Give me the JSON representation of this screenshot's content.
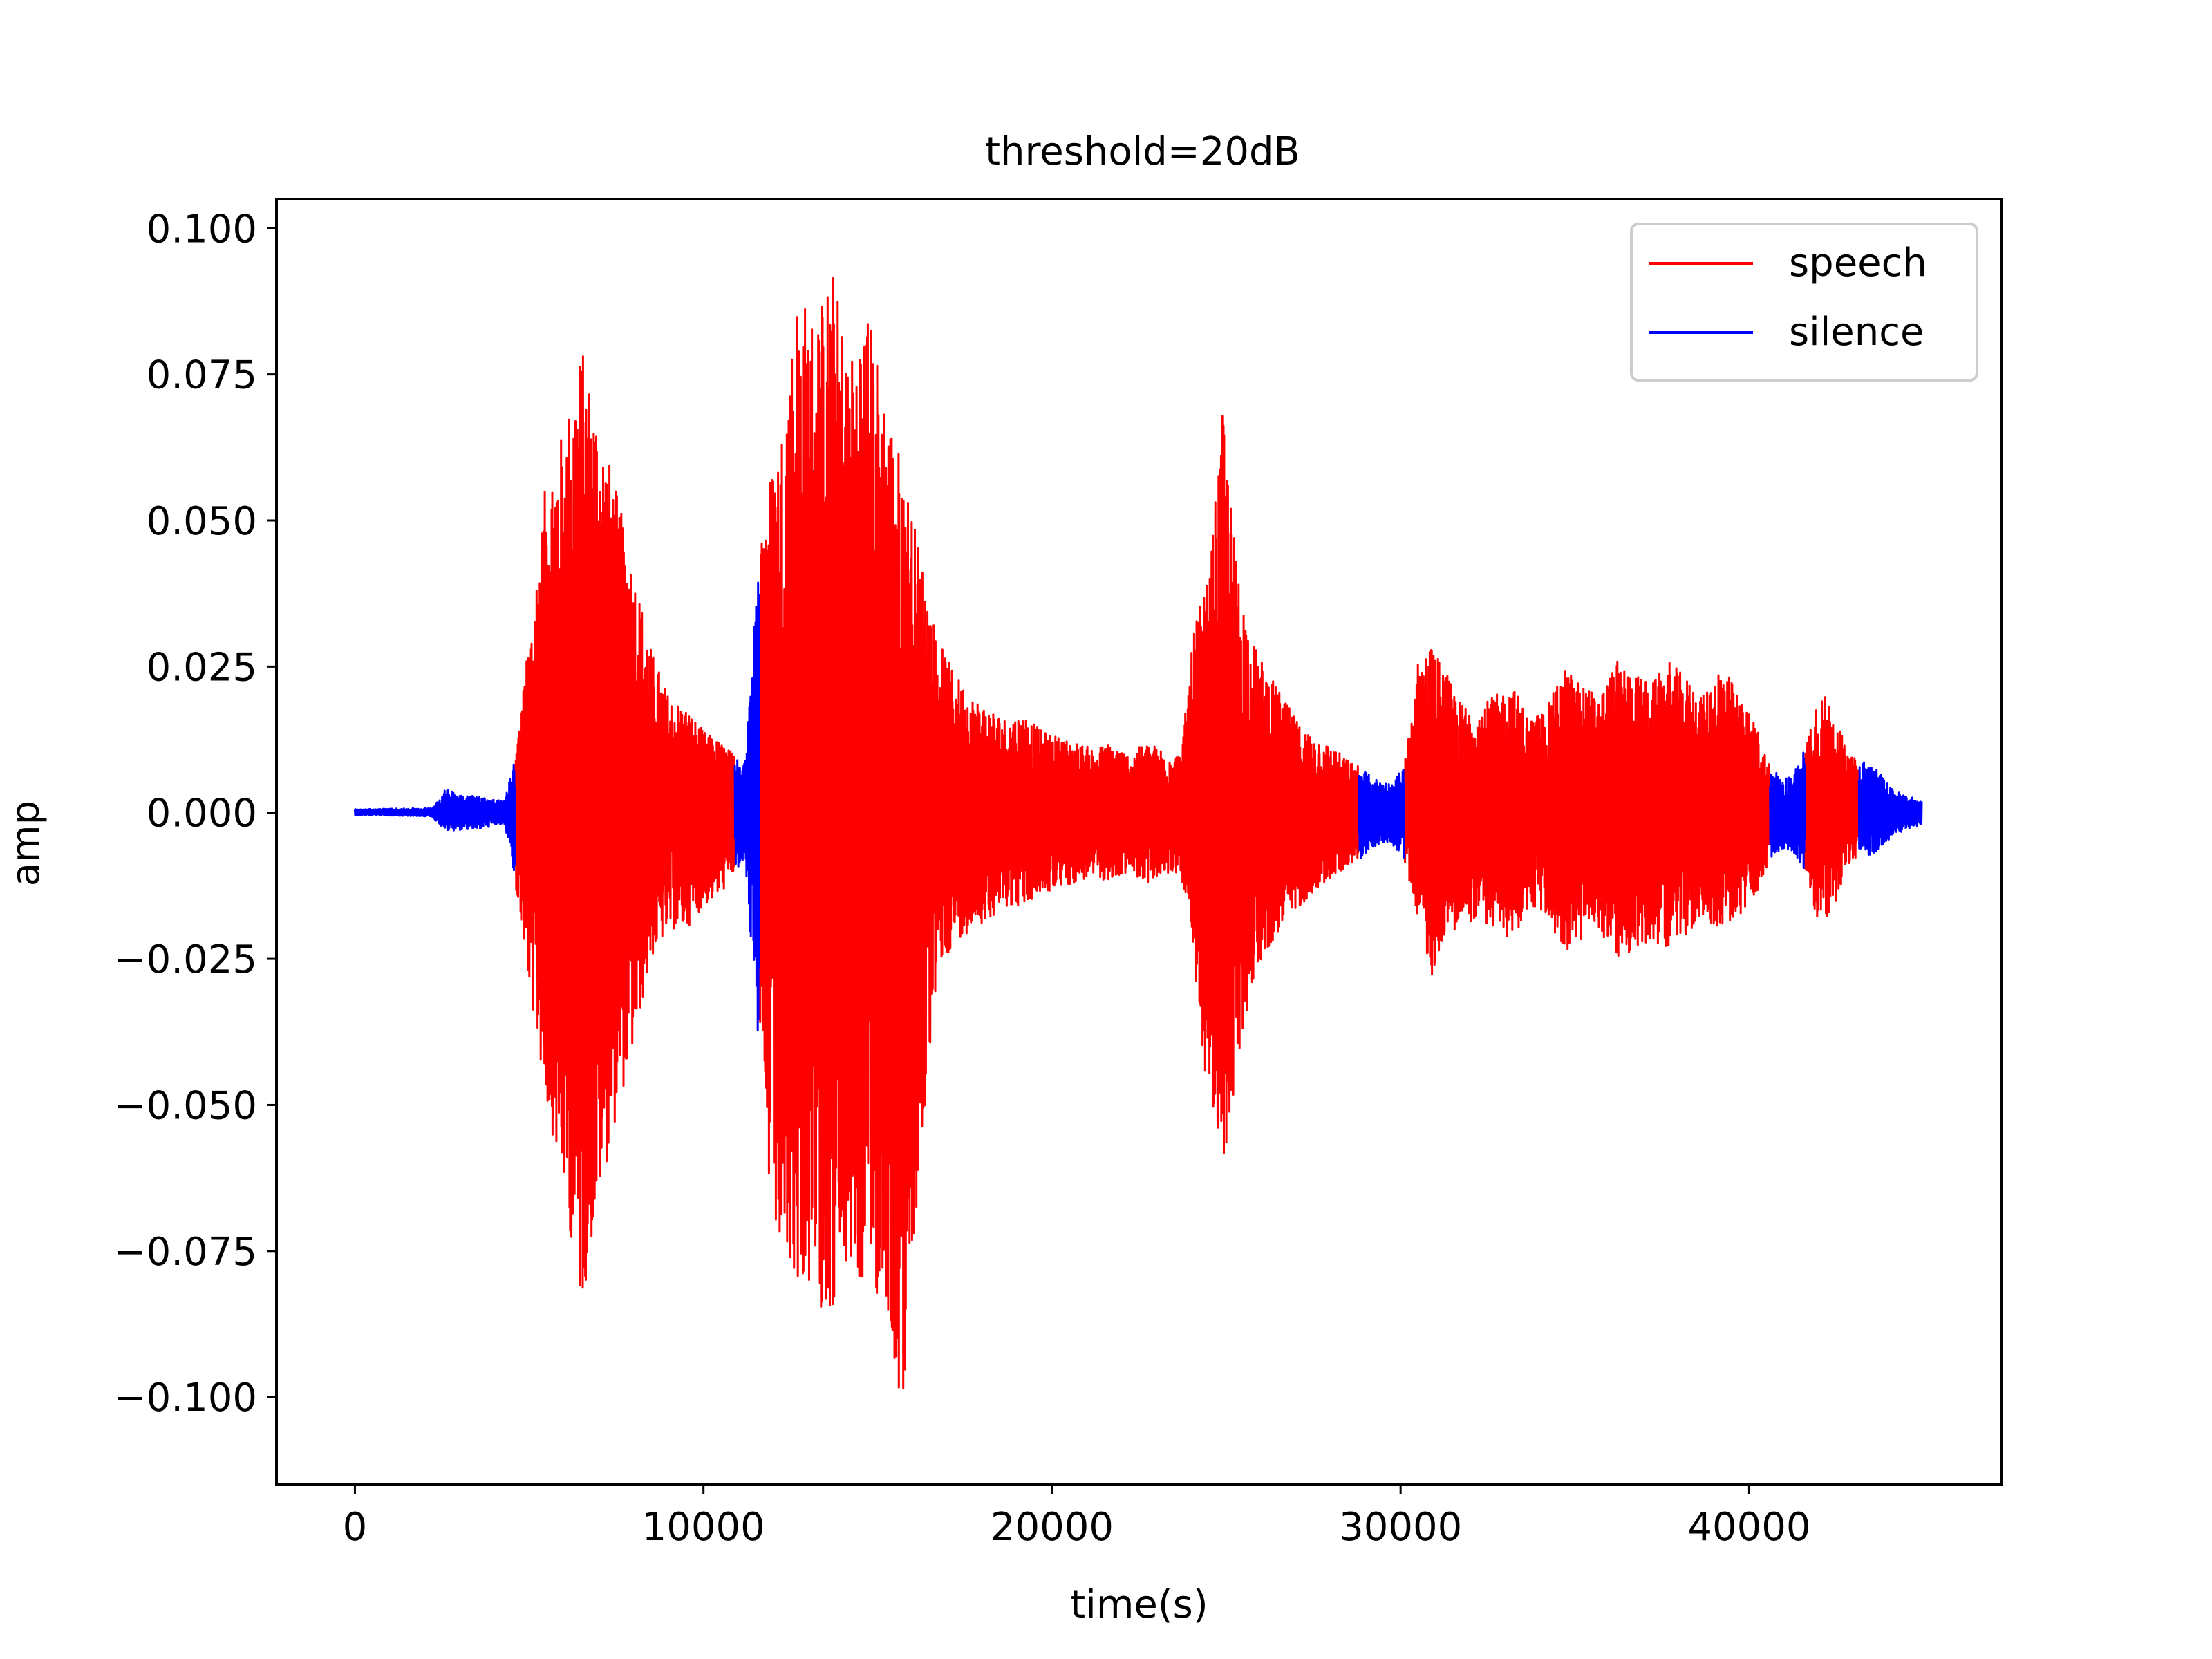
{
  "chart_data": {
    "type": "line",
    "title": "threshold=20dB",
    "xlabel": "time(s)",
    "ylabel": "amp",
    "xlim": [
      -2250,
      47250
    ],
    "ylim": [
      -0.115,
      0.105
    ],
    "xticks": [
      0,
      10000,
      20000,
      30000,
      40000
    ],
    "xtick_labels": [
      "0",
      "10000",
      "20000",
      "30000",
      "40000"
    ],
    "yticks": [
      0.1,
      0.075,
      0.05,
      0.025,
      0.0,
      -0.025,
      -0.05,
      -0.075,
      -0.1
    ],
    "ytick_labels": [
      "0.100",
      "0.075",
      "0.050",
      "0.025",
      "0.000",
      "−0.025",
      "−0.050",
      "−0.075",
      "−0.100"
    ],
    "grid": false,
    "legend_position": "top-right",
    "series": [
      {
        "name": "speech",
        "color": "#ff0000",
        "segments": [
          [
            4600,
            10900
          ],
          [
            11600,
            28800
          ],
          [
            30100,
            40600
          ],
          [
            41600,
            43150
          ]
        ]
      },
      {
        "name": "silence",
        "color": "#0000ff",
        "segments": [
          [
            0,
            4600
          ],
          [
            10900,
            11600
          ],
          [
            28800,
            30100
          ],
          [
            40600,
            41600
          ],
          [
            43150,
            44950
          ]
        ]
      }
    ],
    "amplitude_envelope": {
      "x": [
        0,
        2200,
        2600,
        3300,
        4300,
        4600,
        5000,
        5500,
        6000,
        6500,
        7000,
        7500,
        8000,
        8500,
        9000,
        9500,
        10000,
        10500,
        10900,
        11200,
        11600,
        11800,
        12200,
        12700,
        13200,
        13700,
        14200,
        14700,
        15200,
        15700,
        16200,
        16700,
        17200,
        17700,
        18200,
        18700,
        19200,
        19700,
        20200,
        20700,
        21200,
        21700,
        22200,
        22700,
        23200,
        23700,
        24100,
        24500,
        24900,
        25300,
        25700,
        26100,
        26600,
        27100,
        27600,
        28100,
        28500,
        28800,
        29200,
        29700,
        30100,
        30500,
        30900,
        31300,
        31700,
        32200,
        32700,
        33200,
        33700,
        34200,
        34700,
        35200,
        35700,
        36200,
        36700,
        37200,
        37700,
        38200,
        38700,
        39200,
        39700,
        40200,
        40600,
        41000,
        41300,
        41600,
        41900,
        42200,
        42500,
        42800,
        43150,
        43600,
        44100,
        44500,
        44950
      ],
      "upper": [
        0.0006,
        0.0008,
        0.004,
        0.003,
        0.002,
        0.01,
        0.03,
        0.058,
        0.066,
        0.08,
        0.068,
        0.055,
        0.042,
        0.028,
        0.02,
        0.018,
        0.014,
        0.012,
        0.01,
        0.009,
        0.046,
        0.056,
        0.064,
        0.09,
        0.085,
        0.093,
        0.078,
        0.087,
        0.072,
        0.06,
        0.045,
        0.03,
        0.024,
        0.02,
        0.018,
        0.016,
        0.017,
        0.014,
        0.013,
        0.012,
        0.011,
        0.012,
        0.01,
        0.012,
        0.011,
        0.01,
        0.033,
        0.04,
        0.069,
        0.043,
        0.03,
        0.025,
        0.02,
        0.015,
        0.013,
        0.011,
        0.009,
        0.008,
        0.006,
        0.005,
        0.008,
        0.026,
        0.029,
        0.024,
        0.019,
        0.018,
        0.02,
        0.022,
        0.016,
        0.018,
        0.025,
        0.022,
        0.02,
        0.026,
        0.024,
        0.022,
        0.026,
        0.023,
        0.02,
        0.026,
        0.02,
        0.015,
        0.008,
        0.006,
        0.007,
        0.011,
        0.02,
        0.02,
        0.017,
        0.01,
        0.009,
        0.008,
        0.004,
        0.003,
        0.002
      ],
      "lower": [
        -0.0004,
        -0.0006,
        -0.003,
        -0.003,
        -0.002,
        -0.012,
        -0.03,
        -0.05,
        -0.065,
        -0.085,
        -0.066,
        -0.052,
        -0.04,
        -0.025,
        -0.02,
        -0.02,
        -0.016,
        -0.014,
        -0.01,
        -0.008,
        -0.044,
        -0.062,
        -0.078,
        -0.08,
        -0.084,
        -0.086,
        -0.078,
        -0.085,
        -0.082,
        -0.105,
        -0.062,
        -0.028,
        -0.022,
        -0.02,
        -0.018,
        -0.016,
        -0.016,
        -0.014,
        -0.013,
        -0.012,
        -0.011,
        -0.012,
        -0.01,
        -0.012,
        -0.011,
        -0.01,
        -0.03,
        -0.05,
        -0.062,
        -0.045,
        -0.03,
        -0.024,
        -0.02,
        -0.016,
        -0.013,
        -0.011,
        -0.009,
        -0.008,
        -0.006,
        -0.005,
        -0.008,
        -0.018,
        -0.028,
        -0.02,
        -0.02,
        -0.018,
        -0.02,
        -0.022,
        -0.016,
        -0.018,
        -0.024,
        -0.022,
        -0.02,
        -0.025,
        -0.024,
        -0.022,
        -0.023,
        -0.021,
        -0.018,
        -0.02,
        -0.018,
        -0.014,
        -0.008,
        -0.006,
        -0.007,
        -0.01,
        -0.018,
        -0.019,
        -0.015,
        -0.009,
        -0.008,
        -0.007,
        -0.004,
        -0.003,
        -0.002
      ]
    }
  }
}
